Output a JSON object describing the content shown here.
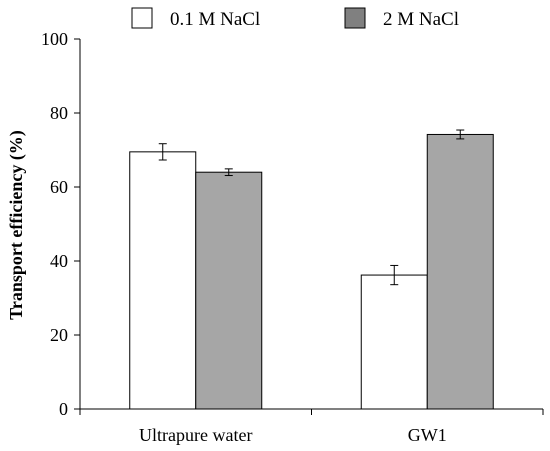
{
  "chart_data": {
    "type": "bar",
    "ylabel": "Transport efficiency  (%)",
    "xlabel": "",
    "ylim": [
      0,
      100
    ],
    "yticks": [
      0,
      20,
      40,
      60,
      80,
      100
    ],
    "categories": [
      "Ultrapure water",
      "GW1"
    ],
    "series": [
      {
        "name": "0.1 M NaCl",
        "values": [
          69.5,
          36.2
        ],
        "errors": [
          2.2,
          2.6
        ],
        "color": "#ffffff"
      },
      {
        "name": "2 M NaCl",
        "values": [
          64.0,
          74.2
        ],
        "errors": [
          0.9,
          1.2
        ],
        "color": "#a6a6a6"
      }
    ],
    "legend": {
      "placement": "top",
      "swatch_colors": [
        "#ffffff",
        "#808080"
      ]
    },
    "grid": false
  }
}
